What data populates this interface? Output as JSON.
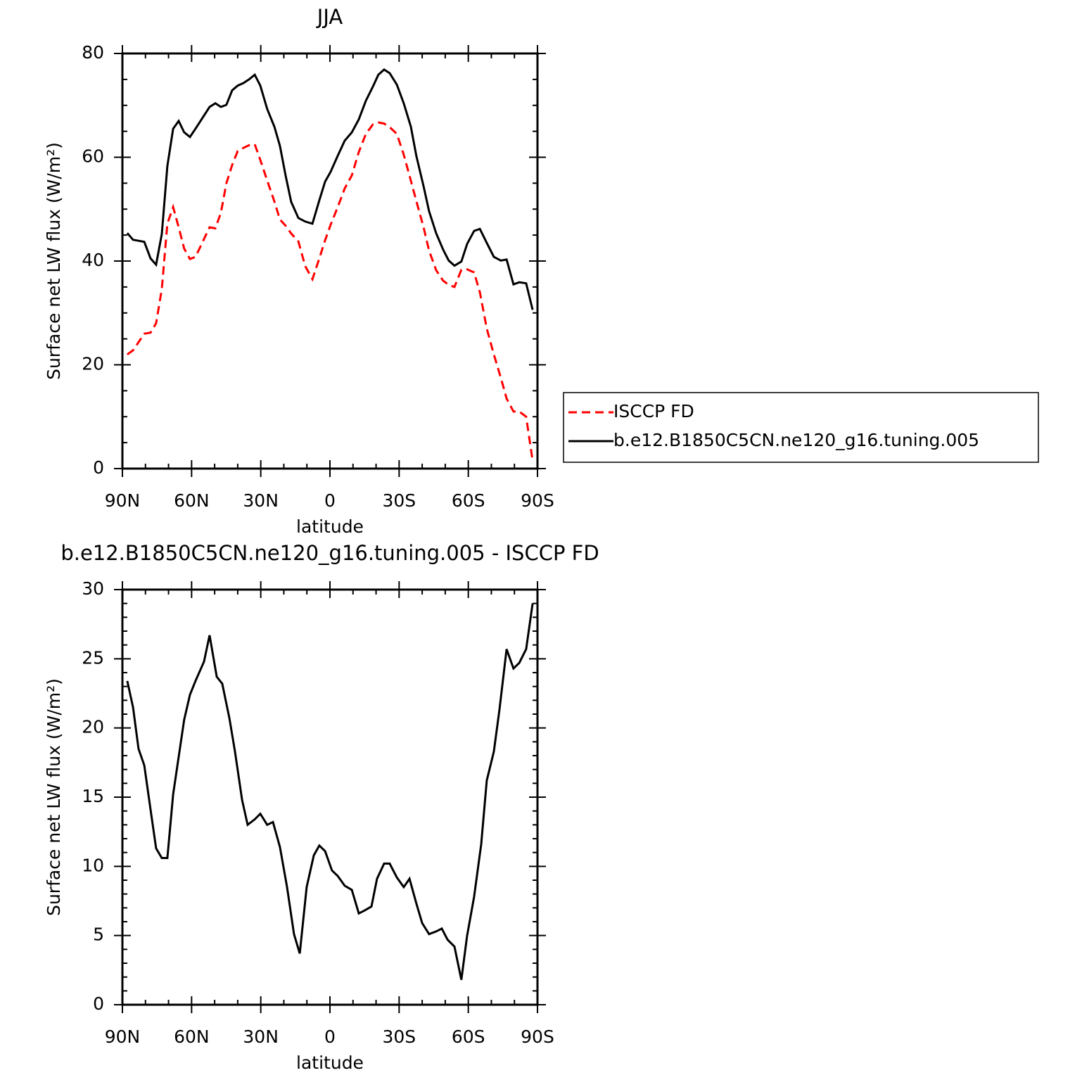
{
  "chart_data": [
    {
      "type": "line",
      "title": "JJA",
      "x_label": "latitude",
      "y_label": "Surface net LW flux (W/m²)",
      "x": [
        87.9,
        85.4,
        80.5,
        77.8,
        75.4,
        72.9,
        70.5,
        68.0,
        65.6,
        63.2,
        60.7,
        58.3,
        52.2,
        49.7,
        47.3,
        44.9,
        42.4,
        40.0,
        37.5,
        35.1,
        32.6,
        30.2,
        27.2,
        24.1,
        21.7,
        19.2,
        16.8,
        13.7,
        10.7,
        7.6,
        4.6,
        2.1,
        -0.3,
        -3.3,
        -6.4,
        -9.5,
        -12.5,
        -15.6,
        -18.6,
        -21.0,
        -23.5,
        -25.9,
        -29.0,
        -32.0,
        -35.1,
        -37.5,
        -40.6,
        -43.0,
        -46.1,
        -49.1,
        -51.5,
        -54.0,
        -57.0,
        -59.5,
        -62.5,
        -65.0,
        -68.0,
        -71.1,
        -74.1,
        -76.6,
        -79.6,
        -82.1,
        -85.1,
        -87.9
      ],
      "series": [
        {
          "name": "ISCCP FD",
          "color": "#ff0000",
          "dash": true,
          "values": [
            22.0,
            22.8,
            26.0,
            26.2,
            28.0,
            34.6,
            47.2,
            50.4,
            46.5,
            42.4,
            40.4,
            40.8,
            46.5,
            46.3,
            49.3,
            55.0,
            58.5,
            61.2,
            61.8,
            62.3,
            62.5,
            59.5,
            55.5,
            51.5,
            48.0,
            46.8,
            45.3,
            43.8,
            39.0,
            36.5,
            40.5,
            44.0,
            47.0,
            50.3,
            54.0,
            56.5,
            61.0,
            64.5,
            66.3,
            66.7,
            66.5,
            65.8,
            64.5,
            60.5,
            55.5,
            51.5,
            46.5,
            42.0,
            38.2,
            36.2,
            35.4,
            35.0,
            38.3,
            38.4,
            37.8,
            34.0,
            27.0,
            22.0,
            17.5,
            13.5,
            11.0,
            11.0,
            10.0,
            1.5
          ]
        },
        {
          "name": "b.e12.B1850C5CN.ne120_g16.tuning.005",
          "color": "#000000",
          "dash": false,
          "values": [
            45.4,
            44.1,
            43.7,
            40.5,
            39.3,
            45.2,
            58.3,
            65.5,
            67.0,
            64.8,
            63.9,
            65.5,
            69.7,
            70.4,
            69.7,
            70.1,
            72.9,
            73.8,
            74.3,
            75.0,
            75.9,
            73.8,
            69.3,
            65.9,
            62.2,
            56.4,
            51.4,
            48.3,
            47.6,
            47.2,
            51.7,
            55.3,
            57.2,
            60.2,
            63.2,
            64.8,
            67.3,
            70.9,
            73.6,
            75.9,
            76.9,
            76.2,
            74.0,
            70.4,
            65.9,
            60.2,
            54.4,
            49.6,
            45.3,
            42.2,
            40.1,
            39.1,
            39.9,
            43.3,
            45.8,
            46.2,
            43.5,
            40.8,
            40.1,
            40.3,
            35.5,
            35.9,
            35.7,
            30.6
          ]
        }
      ],
      "xlim": [
        90,
        -90
      ],
      "xticks": [
        {
          "value": 90,
          "label": "90N"
        },
        {
          "value": 60,
          "label": "60N"
        },
        {
          "value": 30,
          "label": "30N"
        },
        0,
        {
          "value": -30,
          "label": "30S"
        },
        {
          "value": -60,
          "label": "60S"
        },
        {
          "value": -90,
          "label": "90S"
        }
      ],
      "ylim": [
        0,
        80
      ],
      "yticks": [
        0,
        20,
        40,
        60,
        80
      ],
      "legend": "right"
    },
    {
      "type": "line",
      "title": "b.e12.B1850C5CN.ne120_g16.tuning.005 - ISCCP FD",
      "x_label": "latitude",
      "y_label": "Surface net LW flux (W/m²)",
      "x": [
        87.9,
        85.4,
        83.0,
        80.5,
        77.8,
        75.4,
        72.9,
        70.5,
        68.0,
        63.2,
        60.7,
        58.3,
        54.6,
        52.2,
        49.1,
        46.7,
        43.6,
        41.2,
        38.1,
        35.7,
        32.6,
        30.2,
        27.2,
        24.7,
        21.7,
        18.6,
        15.6,
        13.1,
        10.1,
        7.0,
        4.6,
        2.1,
        -0.9,
        -3.4,
        -6.4,
        -9.5,
        -12.5,
        -14.9,
        -18.0,
        -20.4,
        -23.5,
        -25.9,
        -29.0,
        -32.0,
        -34.5,
        -37.5,
        -40.0,
        -43.0,
        -46.1,
        -48.5,
        -51.0,
        -54.0,
        -57.0,
        -59.5,
        -62.5,
        -65.6,
        -68.0,
        -71.1,
        -73.5,
        -76.6,
        -79.6,
        -82.1,
        -85.1,
        -87.9
      ],
      "series": [
        {
          "color": "#000000",
          "dash": false,
          "values": [
            23.4,
            21.5,
            18.5,
            17.3,
            14.1,
            11.3,
            10.6,
            10.6,
            15.2,
            20.6,
            22.4,
            23.4,
            24.8,
            26.7,
            23.7,
            23.2,
            20.7,
            18.3,
            14.8,
            13.0,
            13.4,
            13.8,
            13.0,
            13.2,
            11.4,
            8.5,
            5.1,
            3.7,
            8.5,
            10.8,
            11.5,
            11.1,
            9.7,
            9.3,
            8.6,
            8.3,
            6.6,
            6.8,
            7.1,
            9.1,
            10.2,
            10.2,
            9.2,
            8.5,
            9.1,
            7.3,
            5.9,
            5.1,
            5.3,
            5.5,
            4.7,
            4.2,
            1.8,
            5.0,
            7.8,
            11.6,
            16.2,
            18.3,
            21.3,
            25.7,
            24.3,
            24.7,
            25.7,
            29.0
          ]
        }
      ],
      "xlim": [
        90,
        -90
      ],
      "xticks": [
        {
          "value": 90,
          "label": "90N"
        },
        {
          "value": 60,
          "label": "60N"
        },
        {
          "value": 30,
          "label": "30N"
        },
        0,
        {
          "value": -30,
          "label": "30S"
        },
        {
          "value": -60,
          "label": "60S"
        },
        {
          "value": -90,
          "label": "90S"
        }
      ],
      "ylim": [
        0,
        30
      ],
      "yticks": [
        0,
        5,
        10,
        15,
        20,
        25,
        30
      ]
    }
  ]
}
